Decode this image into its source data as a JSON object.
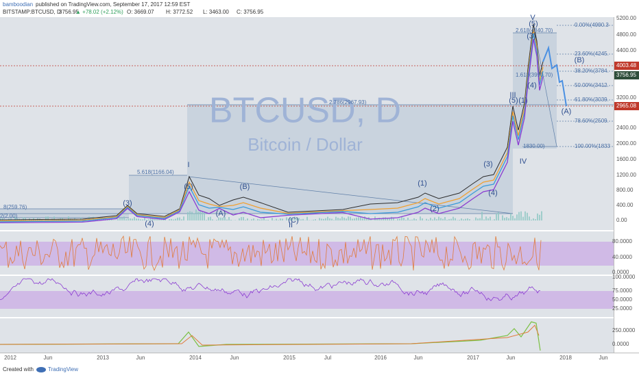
{
  "header": {
    "author": "bamboodian",
    "published": "published on TradingView.com, September 17, 2017 12:59 EST"
  },
  "symbol": {
    "name": "BITSTAMP:BTCUSD, D",
    "last": "3756.95",
    "change": "▲ +78.02 (+2.12%)",
    "ohlc": [
      "O: 3669.07",
      "H: 3772.52",
      "L: 3463.00",
      "C: 3756.95"
    ]
  },
  "watermark": {
    "ticker": "BTCUSD, D",
    "description": "Bitcoin / Dollar"
  },
  "price_axis": [
    "5200.00",
    "4800.00",
    "4400.00",
    "3200.00",
    "2400.00",
    "2000.00",
    "1600.00",
    "1200.00",
    "800.00",
    "400.00",
    "0.00"
  ],
  "price_tags": [
    "4003.48",
    "3756.95",
    "2965.08"
  ],
  "stoch_axis": [
    "80.0000",
    "40.0000",
    "0.0000"
  ],
  "rsi_axis": [
    "100.0000",
    "75.0000",
    "50.0000",
    "25.0000"
  ],
  "macd_axis": [
    "250.0000",
    "0.0000"
  ],
  "time_axis": [
    "2012",
    "Jun",
    "2013",
    "Jun",
    "2014",
    "Jun",
    "2015",
    "Jul",
    "2016",
    "Jun",
    "2017",
    "Jun",
    "2018",
    "Jun"
  ],
  "fib_labels": [
    "0.00%(4990.3",
    "23.60%(4245.",
    "38.20%(3784.",
    "50.00%(3412.",
    "61.80%(3039.",
    "78.60%(2509.",
    "100.00%(1833",
    "1830.00)"
  ],
  "ext_labels": [
    "2.618(4840.70)",
    "1.618(3990.70)",
    "2.786(2967.93)",
    "5.618(1166.04)",
    "8(259.76)",
    "2(2.00)"
  ],
  "wave_labels": [
    "(3)",
    "(4)",
    "(5)",
    "I",
    "(A)",
    "(B)",
    "(C)",
    "II",
    "(1)",
    "(2)",
    "(3)",
    "(4)",
    "(5)",
    "III",
    "(1)",
    "(3)",
    "V",
    "(5)",
    "(4)",
    "IV",
    "(B)",
    "(A)"
  ],
  "footer": {
    "created": "Created with",
    "brand": "TradingView"
  }
}
